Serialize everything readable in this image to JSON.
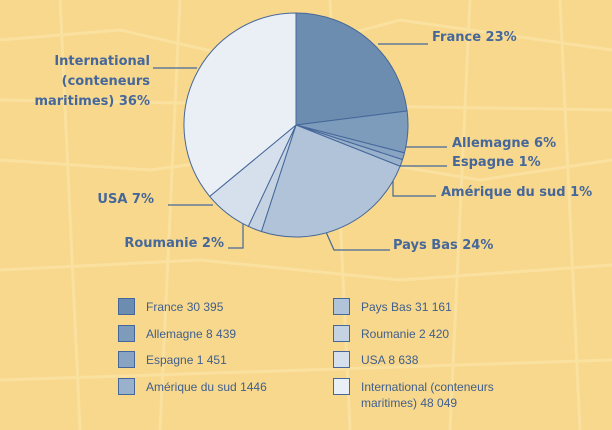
{
  "chart_data": {
    "type": "pie",
    "categories": [
      "France",
      "Allemagne",
      "Espagne",
      "Amérique du sud",
      "Pays Bas",
      "Roumanie",
      "USA",
      "International (conteneurs maritimes)"
    ],
    "values": [
      23,
      6,
      1,
      1,
      24,
      2,
      7,
      36
    ],
    "value_labels": [
      "23%",
      "6%",
      "1%",
      "1%",
      "24%",
      "2%",
      "7%",
      "36%"
    ],
    "amounts": [
      30395,
      8439,
      1451,
      1446,
      31161,
      2420,
      8638,
      48049
    ],
    "amount_labels": [
      "30 395",
      "8 439",
      "1 451",
      "1446",
      "31 161",
      "2 420",
      "8 638",
      "48 049"
    ],
    "colors": [
      "#6d8db0",
      "#7d9bbb",
      "#88a4c2",
      "#9ab1cb",
      "#b0c3d8",
      "#c4d2e2",
      "#d5e0ec",
      "#eaeff6"
    ]
  }
}
